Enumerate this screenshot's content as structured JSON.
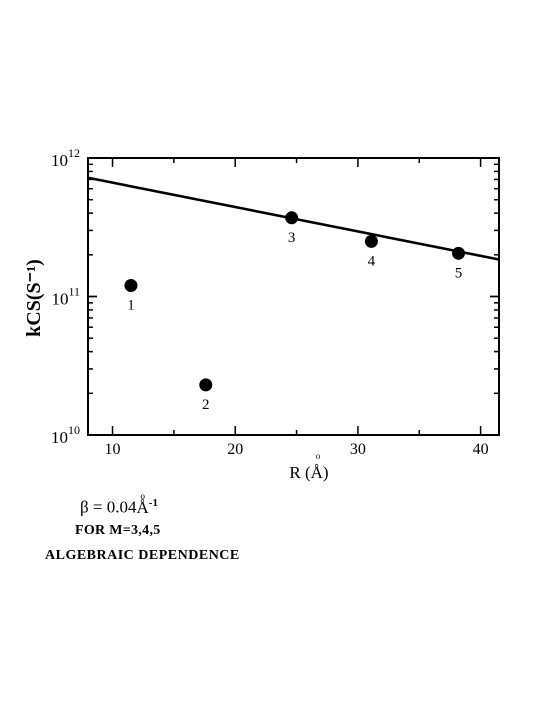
{
  "chart_data": {
    "type": "scatter",
    "title": "",
    "xlabel": "R (Å)",
    "ylabel": "kCS(S⁻¹)",
    "y_scale": "log",
    "xlim": [
      8,
      41.5
    ],
    "ylim": [
      10000000000,
      1000000000000
    ],
    "x_ticks": [
      10,
      20,
      30,
      40
    ],
    "x_tick_labels": [
      "10",
      "20",
      "30",
      "40"
    ],
    "y_ticks": [
      10000000000,
      100000000000,
      1000000000000
    ],
    "y_tick_labels": [
      {
        "base": "10",
        "exp": "10"
      },
      {
        "base": "10",
        "exp": "11"
      },
      {
        "base": "10",
        "exp": "12"
      }
    ],
    "grid": false,
    "points": [
      {
        "label": "1",
        "x": 11.5,
        "y": 120000000000
      },
      {
        "label": "2",
        "x": 17.6,
        "y": 23000000000
      },
      {
        "label": "3",
        "x": 24.6,
        "y": 370000000000
      },
      {
        "label": "4",
        "x": 31.1,
        "y": 250000000000
      },
      {
        "label": "5",
        "x": 38.2,
        "y": 205000000000
      }
    ],
    "fit_line": {
      "x": [
        8,
        41.5
      ],
      "y": [
        720000000000,
        185000000000
      ]
    }
  },
  "annotations": {
    "beta_prefix": "β = 0.04",
    "beta_unit": "Å",
    "beta_ring": "o",
    "beta_exp": "-1",
    "formula_line": "FOR  M=3,4,5",
    "dependence_line": "ALGEBRAIC  DEPENDENCE"
  }
}
